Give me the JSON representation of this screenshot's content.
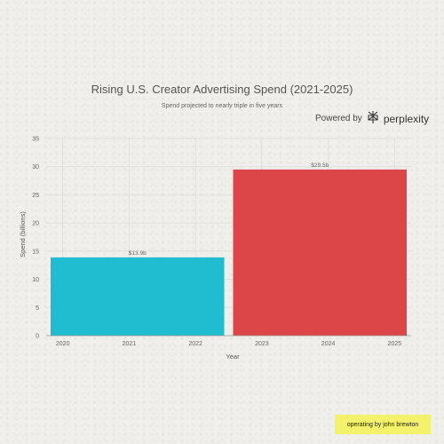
{
  "chart_data": {
    "type": "bar",
    "title": "Rising U.S. Creator Advertising Spend (2021-2025)",
    "subtitle": "Spend projected to nearly triple in five years",
    "xlabel": "Year",
    "ylabel": "Spend (billions)",
    "ylim": [
      0,
      35
    ],
    "yticks": [
      0,
      5,
      10,
      15,
      20,
      25,
      30,
      35
    ],
    "xlim": [
      2019.75,
      2025.25
    ],
    "xticks": [
      2020,
      2021,
      2022,
      2023,
      2024,
      2025
    ],
    "grid": true,
    "bars": [
      {
        "x_start": 2019.75,
        "x_end": 2022.5,
        "value": 13.9,
        "label": "$13.9b",
        "color": "#20bccf"
      },
      {
        "x_start": 2022.5,
        "x_end": 2025.25,
        "value": 29.5,
        "label": "$29.5b",
        "color": "#dd4648"
      }
    ]
  },
  "powered_by": {
    "prefix": "Powered by",
    "brand": "perplexity"
  },
  "badge": {
    "text": "operating by john brewton"
  }
}
